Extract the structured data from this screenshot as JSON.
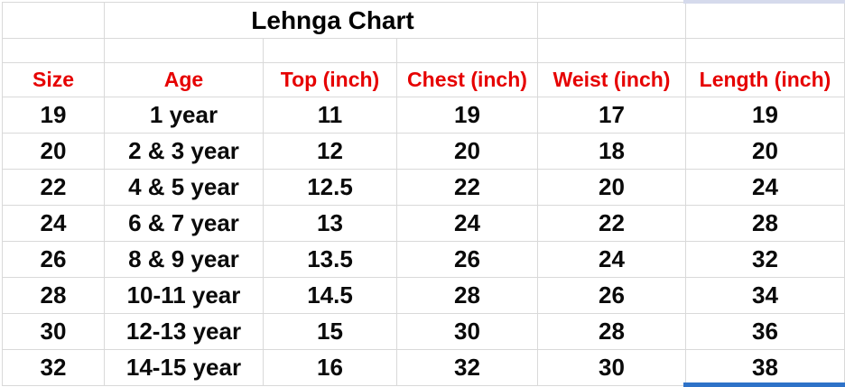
{
  "sheet": {
    "title": "Lehnga Chart",
    "columns": [
      "Size",
      "Age",
      "Top (inch)",
      "Chest (inch)",
      "Weist (inch)",
      "Length (inch)"
    ],
    "rows": [
      [
        "19",
        "1 year",
        "11",
        "19",
        "17",
        "19"
      ],
      [
        "20",
        "2 & 3 year",
        "12",
        "20",
        "18",
        "20"
      ],
      [
        "22",
        "4 & 5 year",
        "12.5",
        "22",
        "20",
        "24"
      ],
      [
        "24",
        "6 & 7 year",
        "13",
        "24",
        "22",
        "28"
      ],
      [
        "26",
        "8 & 9 year",
        "13.5",
        "26",
        "24",
        "32"
      ],
      [
        "28",
        "10-11 year",
        "14.5",
        "28",
        "26",
        "34"
      ],
      [
        "30",
        "12-13 year",
        "15",
        "30",
        "28",
        "36"
      ],
      [
        "32",
        "14-15 year",
        "16",
        "32",
        "30",
        "38"
      ]
    ]
  },
  "colors": {
    "header_text": "#e60000",
    "body_text": "#0a0a0a",
    "gridline": "#d9d9d9",
    "selection_border": "#2e72c8",
    "selection_fill": "#d5daec"
  }
}
